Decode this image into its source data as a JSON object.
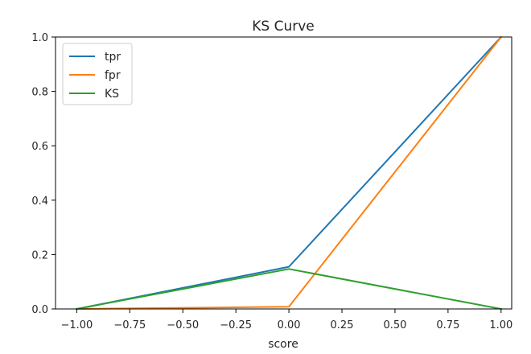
{
  "chart_data": {
    "type": "line",
    "title": "KS Curve",
    "xlabel": "score",
    "ylabel": "",
    "xlim": [
      -1.1,
      1.05
    ],
    "ylim": [
      0.0,
      1.0
    ],
    "xticks": [
      "−1.00",
      "−0.75",
      "−0.50",
      "−0.25",
      "0.00",
      "0.25",
      "0.50",
      "0.75",
      "1.00"
    ],
    "xtick_values": [
      -1.0,
      -0.75,
      -0.5,
      -0.25,
      0.0,
      0.25,
      0.5,
      0.75,
      1.0
    ],
    "yticks": [
      "0.0",
      "0.2",
      "0.4",
      "0.6",
      "0.8",
      "1.0"
    ],
    "ytick_values": [
      0.0,
      0.2,
      0.4,
      0.6,
      0.8,
      1.0
    ],
    "grid": false,
    "legend_position": "top-left",
    "series": [
      {
        "name": "tpr",
        "color": "#1f77b4",
        "x": [
          -1.0,
          0.0,
          1.0
        ],
        "y": [
          0.0,
          0.155,
          1.0
        ]
      },
      {
        "name": "fpr",
        "color": "#ff7f0e",
        "x": [
          -1.0,
          0.0,
          1.0
        ],
        "y": [
          0.0,
          0.008,
          1.0
        ]
      },
      {
        "name": "KS",
        "color": "#2ca02c",
        "x": [
          -1.0,
          0.0,
          1.0
        ],
        "y": [
          0.0,
          0.147,
          0.0
        ]
      }
    ]
  }
}
